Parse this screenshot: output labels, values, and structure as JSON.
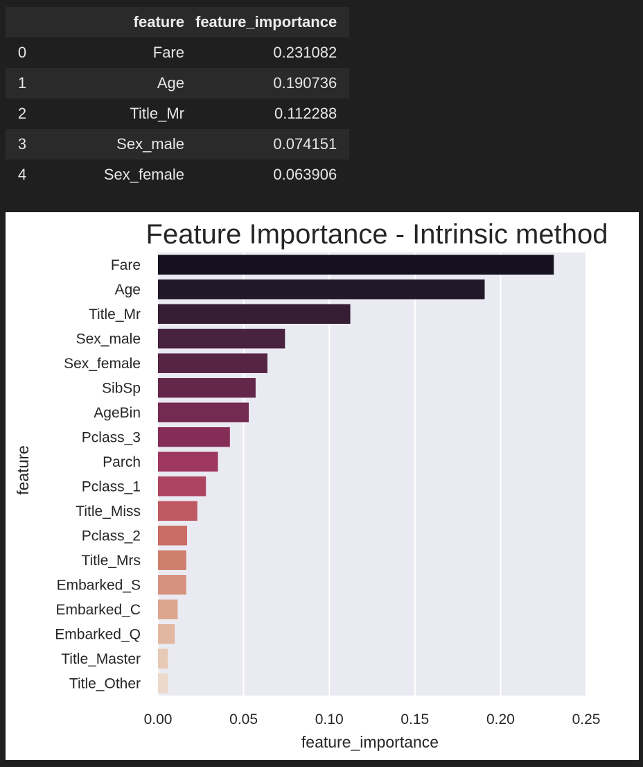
{
  "table": {
    "columns": [
      "",
      "feature",
      "feature_importance"
    ],
    "rows": [
      {
        "index": "0",
        "feature": "Fare",
        "importance": "0.231082"
      },
      {
        "index": "1",
        "feature": "Age",
        "importance": "0.190736"
      },
      {
        "index": "2",
        "feature": "Title_Mr",
        "importance": "0.112288"
      },
      {
        "index": "3",
        "feature": "Sex_male",
        "importance": "0.074151"
      },
      {
        "index": "4",
        "feature": "Sex_female",
        "importance": "0.063906"
      }
    ]
  },
  "chart_data": {
    "type": "bar",
    "orientation": "horizontal",
    "title": "Feature Importance - Intrinsic method",
    "xlabel": "feature_importance",
    "ylabel": "feature",
    "xlim": [
      0,
      0.25
    ],
    "xticks": [
      0.0,
      0.05,
      0.1,
      0.15,
      0.2,
      0.25
    ],
    "xtick_labels": [
      "0.00",
      "0.05",
      "0.10",
      "0.15",
      "0.20",
      "0.25"
    ],
    "grid": true,
    "categories": [
      "Fare",
      "Age",
      "Title_Mr",
      "Sex_male",
      "Sex_female",
      "SibSp",
      "AgeBin",
      "Pclass_3",
      "Parch",
      "Pclass_1",
      "Title_Miss",
      "Pclass_2",
      "Title_Mrs",
      "Embarked_S",
      "Embarked_C",
      "Embarked_Q",
      "Title_Master",
      "Title_Other"
    ],
    "values": [
      0.231082,
      0.190736,
      0.112288,
      0.074151,
      0.063906,
      0.057,
      0.053,
      0.042,
      0.035,
      0.028,
      0.023,
      0.017,
      0.0165,
      0.0165,
      0.0115,
      0.0098,
      0.0058,
      0.0058
    ],
    "colors": [
      "#15111f",
      "#221827",
      "#351e33",
      "#48223f",
      "#552543",
      "#632849",
      "#742b52",
      "#842e57",
      "#9e3760",
      "#ad4561",
      "#bf5a63",
      "#c96c63",
      "#cf7f6d",
      "#d6927e",
      "#dca68e",
      "#e2b7a1",
      "#e8c9b5",
      "#edd9cb"
    ],
    "plot_background": "#eaeaf2",
    "grid_color": "#ffffff"
  }
}
